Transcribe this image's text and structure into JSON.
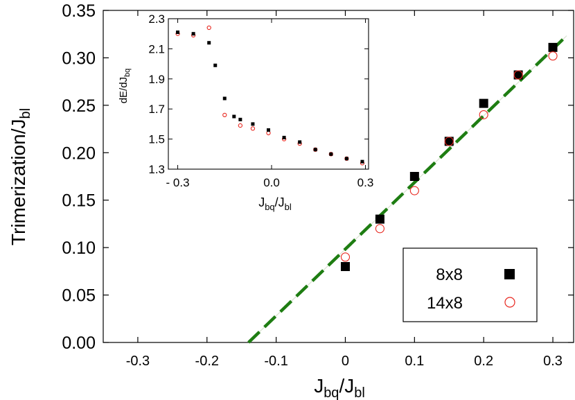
{
  "chart_data": [
    {
      "type": "scatter",
      "xlabel": "J",
      "xlabel_sub1": "bq",
      "xlabel_mid": "/J",
      "xlabel_sub2": "bl",
      "ylabel": "Trimerization/J",
      "ylabel_sub": "bl",
      "xlim": [
        -0.35,
        0.33
      ],
      "ylim": [
        0,
        0.35
      ],
      "xticks": [
        -0.3,
        -0.2,
        -0.1,
        0,
        0.1,
        0.2,
        0.3
      ],
      "xtick_labels": [
        "-0.3",
        "-0.2",
        "-0.1",
        "0",
        "0.1",
        "0.2",
        "0.3"
      ],
      "yticks": [
        0,
        0.05,
        0.1,
        0.15,
        0.2,
        0.25,
        0.3,
        0.35
      ],
      "ytick_labels": [
        "0.00",
        "0.05",
        "0.10",
        "0.15",
        "0.20",
        "0.25",
        "0.30",
        "0.35"
      ],
      "legend_position": "bottom-right",
      "series": [
        {
          "name": "8x8",
          "marker": "filled-square",
          "color": "#000000",
          "x": [
            0,
            0.05,
            0.1,
            0.15,
            0.2,
            0.25,
            0.3
          ],
          "y": [
            0.08,
            0.13,
            0.175,
            0.212,
            0.252,
            0.282,
            0.311
          ]
        },
        {
          "name": "14x8",
          "marker": "open-circle",
          "color": "#e8261e",
          "x": [
            0,
            0.05,
            0.1,
            0.15,
            0.2,
            0.25,
            0.3
          ],
          "y": [
            0.09,
            0.12,
            0.16,
            0.212,
            0.24,
            0.282,
            0.302
          ]
        }
      ],
      "fit_line": {
        "style": "dashed",
        "color": "#1e7d12",
        "x": [
          -0.14,
          0.32
        ],
        "y": [
          0,
          0.3233
        ]
      }
    },
    {
      "type": "scatter",
      "inset": true,
      "xlabel": "J",
      "xlabel_sub1": "bq",
      "xlabel_mid": "/J",
      "xlabel_sub2": "bl",
      "ylabel": "dE/dJ",
      "ylabel_sub": "bq",
      "xlim": [
        -0.33,
        0.31
      ],
      "ylim": [
        1.3,
        2.3
      ],
      "xticks": [
        -0.3,
        0,
        0.3
      ],
      "xtick_labels": [
        "- 0.3",
        "0.0",
        "0.3"
      ],
      "yticks": [
        1.3,
        1.5,
        1.7,
        1.9,
        2.1,
        2.3
      ],
      "ytick_labels": [
        "1.3",
        "1.5",
        "1.7",
        "1.9",
        "2.1",
        "2.3"
      ],
      "series": [
        {
          "name": "8x8",
          "marker": "filled-square",
          "color": "#000000",
          "x": [
            -0.3,
            -0.25,
            -0.2,
            -0.18,
            -0.15,
            -0.12,
            -0.1,
            -0.06,
            -0.01,
            0.04,
            0.09,
            0.14,
            0.19,
            0.24,
            0.29
          ],
          "y": [
            2.21,
            2.2,
            2.14,
            1.99,
            1.77,
            1.65,
            1.63,
            1.6,
            1.56,
            1.51,
            1.48,
            1.43,
            1.4,
            1.37,
            1.35
          ]
        },
        {
          "name": "14x8",
          "marker": "open-circle",
          "color": "#e8261e",
          "x": [
            -0.3,
            -0.25,
            -0.2,
            -0.15,
            -0.1,
            -0.06,
            -0.01,
            0.04,
            0.09,
            0.14,
            0.19,
            0.24,
            0.29
          ],
          "y": [
            2.2,
            2.19,
            2.24,
            1.66,
            1.59,
            1.57,
            1.54,
            1.5,
            1.47,
            1.43,
            1.4,
            1.37,
            1.34
          ]
        }
      ]
    }
  ]
}
